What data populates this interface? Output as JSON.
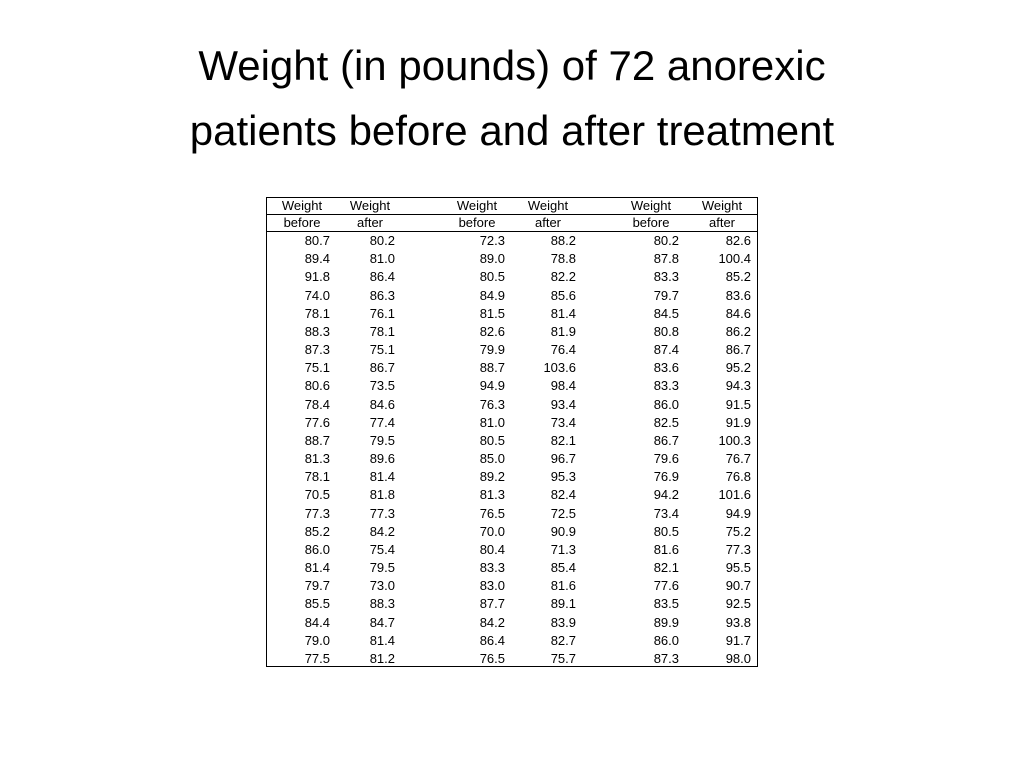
{
  "title": [
    "Weight (in pounds) of 72 anorexic",
    "patients before and after treatment"
  ],
  "table": {
    "header": [
      [
        "Weight",
        "Weight",
        "Weight",
        "Weight",
        "Weight",
        "Weight"
      ],
      [
        "before",
        "after",
        "before",
        "after",
        "before",
        "after"
      ]
    ],
    "rows": [
      [
        "80.7",
        "80.2",
        "72.3",
        "88.2",
        "80.2",
        "82.6"
      ],
      [
        "89.4",
        "81.0",
        "89.0",
        "78.8",
        "87.8",
        "100.4"
      ],
      [
        "91.8",
        "86.4",
        "80.5",
        "82.2",
        "83.3",
        "85.2"
      ],
      [
        "74.0",
        "86.3",
        "84.9",
        "85.6",
        "79.7",
        "83.6"
      ],
      [
        "78.1",
        "76.1",
        "81.5",
        "81.4",
        "84.5",
        "84.6"
      ],
      [
        "88.3",
        "78.1",
        "82.6",
        "81.9",
        "80.8",
        "86.2"
      ],
      [
        "87.3",
        "75.1",
        "79.9",
        "76.4",
        "87.4",
        "86.7"
      ],
      [
        "75.1",
        "86.7",
        "88.7",
        "103.6",
        "83.6",
        "95.2"
      ],
      [
        "80.6",
        "73.5",
        "94.9",
        "98.4",
        "83.3",
        "94.3"
      ],
      [
        "78.4",
        "84.6",
        "76.3",
        "93.4",
        "86.0",
        "91.5"
      ],
      [
        "77.6",
        "77.4",
        "81.0",
        "73.4",
        "82.5",
        "91.9"
      ],
      [
        "88.7",
        "79.5",
        "80.5",
        "82.1",
        "86.7",
        "100.3"
      ],
      [
        "81.3",
        "89.6",
        "85.0",
        "96.7",
        "79.6",
        "76.7"
      ],
      [
        "78.1",
        "81.4",
        "89.2",
        "95.3",
        "76.9",
        "76.8"
      ],
      [
        "70.5",
        "81.8",
        "81.3",
        "82.4",
        "94.2",
        "101.6"
      ],
      [
        "77.3",
        "77.3",
        "76.5",
        "72.5",
        "73.4",
        "94.9"
      ],
      [
        "85.2",
        "84.2",
        "70.0",
        "90.9",
        "80.5",
        "75.2"
      ],
      [
        "86.0",
        "75.4",
        "80.4",
        "71.3",
        "81.6",
        "77.3"
      ],
      [
        "81.4",
        "79.5",
        "83.3",
        "85.4",
        "82.1",
        "95.5"
      ],
      [
        "79.7",
        "73.0",
        "83.0",
        "81.6",
        "77.6",
        "90.7"
      ],
      [
        "85.5",
        "88.3",
        "87.7",
        "89.1",
        "83.5",
        "92.5"
      ],
      [
        "84.4",
        "84.7",
        "84.2",
        "83.9",
        "89.9",
        "93.8"
      ],
      [
        "79.0",
        "81.4",
        "86.4",
        "82.7",
        "86.0",
        "91.7"
      ],
      [
        "77.5",
        "81.2",
        "76.5",
        "75.7",
        "87.3",
        "98.0"
      ]
    ]
  }
}
